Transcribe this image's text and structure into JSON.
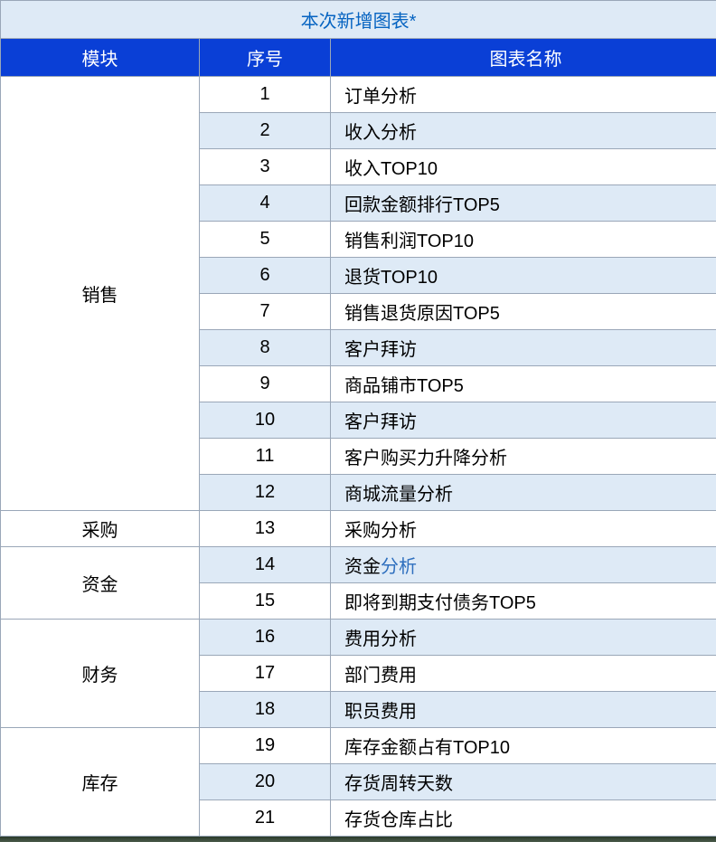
{
  "title": "本次新增图表*",
  "title_color": "#0563c1",
  "title_bg": "#deeaf6",
  "header_bg": "#0a3fd6",
  "header_text_color": "#ffffff",
  "band_light": "#ffffff",
  "band_dark": "#deeaf6",
  "border_color": "#9aa7b8",
  "columns": {
    "module": "模块",
    "seq": "序号",
    "name": "图表名称"
  },
  "column_widths": {
    "module": 220,
    "seq": 145,
    "name": 427
  },
  "groups": [
    {
      "module": "销售",
      "module_bg": "#ffffff",
      "items": [
        {
          "seq": "1",
          "name": "订单分析",
          "band": "light"
        },
        {
          "seq": "2",
          "name": "收入分析",
          "band": "dark"
        },
        {
          "seq": "3",
          "name": "收入TOP10",
          "band": "light"
        },
        {
          "seq": "4",
          "name": "回款金额排行TOP5",
          "band": "dark"
        },
        {
          "seq": "5",
          "name": "销售利润TOP10",
          "band": "light"
        },
        {
          "seq": "6",
          "name": "退货TOP10",
          "band": "dark"
        },
        {
          "seq": "7",
          "name": "销售退货原因TOP5",
          "band": "light"
        },
        {
          "seq": "8",
          "name": "客户拜访",
          "band": "dark"
        },
        {
          "seq": "9",
          "name": "商品铺市TOP5",
          "band": "light"
        },
        {
          "seq": "10",
          "name": "客户拜访",
          "band": "dark"
        },
        {
          "seq": "11",
          "name": "客户购买力升降分析",
          "band": "light"
        },
        {
          "seq": "12",
          "name": "商城流量分析",
          "band": "dark"
        }
      ]
    },
    {
      "module": "采购",
      "module_bg": "#ffffff",
      "items": [
        {
          "seq": "13",
          "name": "采购分析",
          "band": "light"
        }
      ]
    },
    {
      "module": "资金",
      "module_bg": "#deeaf6",
      "items": [
        {
          "seq": "14",
          "name_parts": [
            {
              "text": "资金",
              "color": "#000000"
            },
            {
              "text": "分析",
              "color": "#2e6fbe"
            }
          ],
          "band": "dark"
        },
        {
          "seq": "15",
          "name": "即将到期支付债务TOP5",
          "band": "light"
        }
      ]
    },
    {
      "module": "财务",
      "module_bg": "#ffffff",
      "items": [
        {
          "seq": "16",
          "name": "费用分析",
          "band": "dark"
        },
        {
          "seq": "17",
          "name": "部门费用",
          "band": "light"
        },
        {
          "seq": "18",
          "name": "职员费用",
          "band": "dark"
        }
      ]
    },
    {
      "module": "库存",
      "module_bg": "#ffffff",
      "items": [
        {
          "seq": "19",
          "name": "库存金额占有TOP10",
          "band": "light"
        },
        {
          "seq": "20",
          "name": "存货周转天数",
          "band": "dark"
        },
        {
          "seq": "21",
          "name": "存货仓库占比",
          "band": "light"
        }
      ]
    }
  ]
}
